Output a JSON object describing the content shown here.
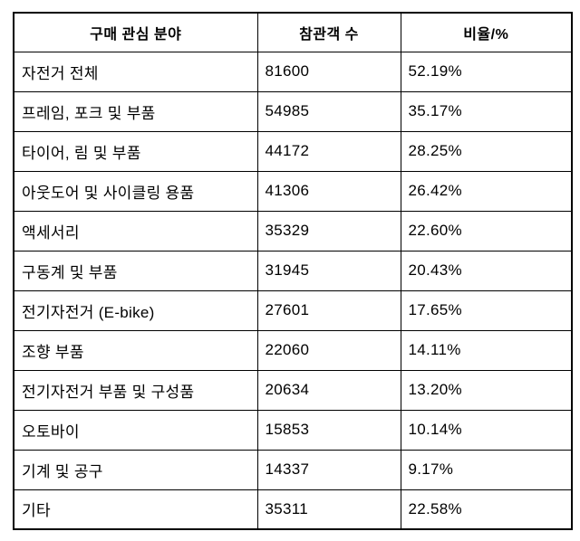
{
  "table": {
    "headers": [
      "구매 관심 분야",
      "참관객 수",
      "비율/%"
    ],
    "rows": [
      {
        "category": "자전거 전체",
        "visitors": "81600",
        "ratio": "52.19%"
      },
      {
        "category": "프레임, 포크 및 부품",
        "visitors": "54985",
        "ratio": "35.17%"
      },
      {
        "category": "타이어, 림 및 부품",
        "visitors": "44172",
        "ratio": "28.25%"
      },
      {
        "category": "아웃도어 및 사이클링 용품",
        "visitors": "41306",
        "ratio": "26.42%"
      },
      {
        "category": "액세서리",
        "visitors": "35329",
        "ratio": "22.60%"
      },
      {
        "category": "구동계 및 부품",
        "visitors": "31945",
        "ratio": "20.43%"
      },
      {
        "category": "전기자전거 (E-bike)",
        "visitors": "27601",
        "ratio": "17.65%"
      },
      {
        "category": "조향 부품",
        "visitors": "22060",
        "ratio": "14.11%"
      },
      {
        "category": "전기자전거 부품 및 구성품",
        "visitors": "20634",
        "ratio": "13.20%"
      },
      {
        "category": "오토바이",
        "visitors": "15853",
        "ratio": "10.14%"
      },
      {
        "category": "기계 및 공구",
        "visitors": "14337",
        "ratio": "9.17%"
      },
      {
        "category": "기타",
        "visitors": "35311",
        "ratio": "22.58%"
      }
    ],
    "colors": {
      "border": "#000000",
      "text": "#000000",
      "background": "#ffffff"
    }
  }
}
